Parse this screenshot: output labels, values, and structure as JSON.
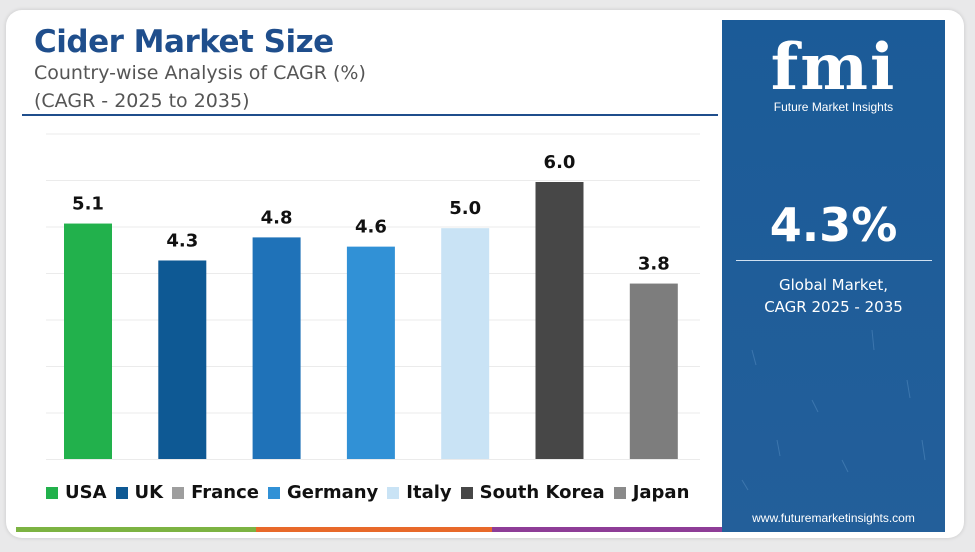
{
  "header": {
    "title": "Cider Market Size",
    "subtitle": "Country-wise Analysis of CAGR (%)",
    "subtitle2": "(CAGR - 2025 to 2035)"
  },
  "chart_data": {
    "type": "bar",
    "title": "Cider Market Size",
    "categories": [
      "USA",
      "UK",
      "France",
      "Germany",
      "Italy",
      "South Korea",
      "Japan"
    ],
    "values": [
      5.1,
      4.3,
      4.8,
      4.6,
      5.0,
      6.0,
      3.8
    ],
    "value_labels": [
      "5.1",
      "4.3",
      "4.8",
      "4.6",
      "5.0",
      "6.0",
      "3.8"
    ],
    "colors": [
      "#22b14c",
      "#0e5994",
      "#1f72b8",
      "#3191d6",
      "#c9e3f5",
      "#474747",
      "#7d7d7d"
    ],
    "legend_colors": [
      "#22b14c",
      "#0e5994",
      "#9e9e9e",
      "#3191d6",
      "#c9e3f5",
      "#474747",
      "#8a8a8a"
    ],
    "ylim": [
      0,
      6.0
    ],
    "grid": true,
    "legend_position": "bottom",
    "xlabel": "",
    "ylabel": ""
  },
  "panel": {
    "logo": "fmi",
    "logo_subtitle": "Future Market Insights",
    "value": "4.3%",
    "label_line1": "Global Market,",
    "label_line2": "CAGR 2025 - 2035",
    "url": "www.futuremarketinsights.com",
    "background_color": "#1e5e9c"
  },
  "strip_colors": [
    "#7cb342",
    "#e8692a",
    "#8e3d97"
  ]
}
